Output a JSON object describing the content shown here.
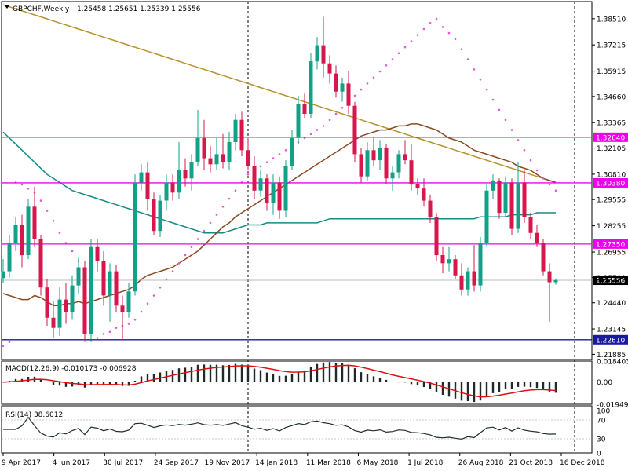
{
  "header": {
    "symbol": "GBPCHF,Weekly",
    "ohlc": "1.25458 1.25651 1.25339 1.25556"
  },
  "macd": {
    "label": "MACD(12,26,9) -0.010173 -0.006928",
    "ticks": [
      "0.018403",
      "0.00",
      "-0.019495"
    ]
  },
  "rsi": {
    "label": "RSI(14) 38.6012",
    "ticks": [
      "100",
      "70",
      "30",
      "0"
    ]
  },
  "price_axis": {
    "ticks": [
      "1.38510",
      "1.37215",
      "1.35915",
      "1.34660",
      "1.33365",
      "1.32105",
      "1.30810",
      "1.29555",
      "1.28255",
      "1.26955",
      "1.25700",
      "1.24440",
      "1.23145",
      "1.21885"
    ]
  },
  "time_axis": {
    "ticks": [
      "9 Apr 2017",
      "4 Jun 2017",
      "30 Jul 2017",
      "24 Sep 2017",
      "19 Nov 2017",
      "14 Jan 2018",
      "11 Mar 2018",
      "6 May 2018",
      "1 Jul 2018",
      "26 Aug 2018",
      "21 Oct 2018",
      "16 Dec 2018"
    ]
  },
  "colors": {
    "bull": "#12a089",
    "bear": "#d6174c",
    "ma_fast": "#8b4a23",
    "ma_mid": "#138c86",
    "ma_slow": "#b8922a",
    "sar": "#e05ad6",
    "hline": "#ee00ee",
    "support": "#1a1a9e",
    "macd_hist": "#1f2a2a",
    "macd_signal": "#e01010",
    "rsi_line": "#1f2f2f"
  },
  "chart_data": {
    "type": "candlestick",
    "title": "GBPCHF,Weekly",
    "ylim": [
      1.2163,
      1.3936
    ],
    "grid": false,
    "x": [
      "9 Apr 2017",
      "4 Jun 2017",
      "30 Jul 2017",
      "24 Sep 2017",
      "19 Nov 2017",
      "14 Jan 2018",
      "11 Mar 2018",
      "6 May 2018",
      "1 Jul 2018",
      "26 Aug 2018",
      "21 Oct 2018",
      "16 Dec 2018"
    ],
    "horizontal_lines": [
      {
        "value": "1.32640",
        "y": 1.3264,
        "color": "#ee00ee"
      },
      {
        "value": "1.30380",
        "y": 1.3038,
        "color": "#ee00ee"
      },
      {
        "value": "1.27350",
        "y": 1.2735,
        "color": "#ee00ee"
      },
      {
        "value": "1.22610",
        "y": 1.2261,
        "color": "#1a1a9e"
      }
    ],
    "current_price": "1.25556",
    "current_price_y": 1.25556,
    "candles": [
      {
        "o": 1.2566,
        "h": 1.266,
        "l": 1.254,
        "c": 1.26
      },
      {
        "o": 1.26,
        "h": 1.278,
        "l": 1.257,
        "c": 1.274
      },
      {
        "o": 1.274,
        "h": 1.287,
        "l": 1.27,
        "c": 1.283
      },
      {
        "o": 1.283,
        "h": 1.288,
        "l": 1.262,
        "c": 1.268
      },
      {
        "o": 1.268,
        "h": 1.296,
        "l": 1.266,
        "c": 1.292
      },
      {
        "o": 1.292,
        "h": 1.302,
        "l": 1.272,
        "c": 1.276
      },
      {
        "o": 1.276,
        "h": 1.278,
        "l": 1.248,
        "c": 1.252
      },
      {
        "o": 1.252,
        "h": 1.256,
        "l": 1.233,
        "c": 1.237
      },
      {
        "o": 1.237,
        "h": 1.245,
        "l": 1.227,
        "c": 1.232
      },
      {
        "o": 1.232,
        "h": 1.252,
        "l": 1.228,
        "c": 1.246
      },
      {
        "o": 1.246,
        "h": 1.254,
        "l": 1.234,
        "c": 1.24
      },
      {
        "o": 1.24,
        "h": 1.258,
        "l": 1.236,
        "c": 1.253
      },
      {
        "o": 1.253,
        "h": 1.267,
        "l": 1.249,
        "c": 1.262
      },
      {
        "o": 1.262,
        "h": 1.265,
        "l": 1.225,
        "c": 1.229
      },
      {
        "o": 1.229,
        "h": 1.276,
        "l": 1.225,
        "c": 1.272
      },
      {
        "o": 1.272,
        "h": 1.276,
        "l": 1.26,
        "c": 1.265
      },
      {
        "o": 1.265,
        "h": 1.27,
        "l": 1.243,
        "c": 1.248
      },
      {
        "o": 1.248,
        "h": 1.264,
        "l": 1.235,
        "c": 1.26
      },
      {
        "o": 1.26,
        "h": 1.263,
        "l": 1.24,
        "c": 1.243
      },
      {
        "o": 1.243,
        "h": 1.248,
        "l": 1.226,
        "c": 1.24
      },
      {
        "o": 1.24,
        "h": 1.254,
        "l": 1.237,
        "c": 1.25
      },
      {
        "o": 1.25,
        "h": 1.308,
        "l": 1.248,
        "c": 1.304
      },
      {
        "o": 1.304,
        "h": 1.313,
        "l": 1.3,
        "c": 1.309
      },
      {
        "o": 1.309,
        "h": 1.314,
        "l": 1.29,
        "c": 1.296
      },
      {
        "o": 1.296,
        "h": 1.299,
        "l": 1.278,
        "c": 1.28
      },
      {
        "o": 1.28,
        "h": 1.298,
        "l": 1.277,
        "c": 1.295
      },
      {
        "o": 1.295,
        "h": 1.308,
        "l": 1.29,
        "c": 1.304
      },
      {
        "o": 1.304,
        "h": 1.308,
        "l": 1.295,
        "c": 1.299
      },
      {
        "o": 1.299,
        "h": 1.324,
        "l": 1.296,
        "c": 1.31
      },
      {
        "o": 1.31,
        "h": 1.316,
        "l": 1.302,
        "c": 1.306
      },
      {
        "o": 1.306,
        "h": 1.318,
        "l": 1.3,
        "c": 1.314
      },
      {
        "o": 1.314,
        "h": 1.34,
        "l": 1.312,
        "c": 1.326
      },
      {
        "o": 1.326,
        "h": 1.335,
        "l": 1.31,
        "c": 1.316
      },
      {
        "o": 1.316,
        "h": 1.322,
        "l": 1.309,
        "c": 1.313
      },
      {
        "o": 1.313,
        "h": 1.326,
        "l": 1.31,
        "c": 1.318
      },
      {
        "o": 1.318,
        "h": 1.328,
        "l": 1.311,
        "c": 1.314
      },
      {
        "o": 1.314,
        "h": 1.329,
        "l": 1.31,
        "c": 1.324
      },
      {
        "o": 1.324,
        "h": 1.338,
        "l": 1.32,
        "c": 1.335
      },
      {
        "o": 1.335,
        "h": 1.339,
        "l": 1.317,
        "c": 1.32
      },
      {
        "o": 1.32,
        "h": 1.326,
        "l": 1.31,
        "c": 1.312
      },
      {
        "o": 1.312,
        "h": 1.317,
        "l": 1.296,
        "c": 1.3
      },
      {
        "o": 1.3,
        "h": 1.31,
        "l": 1.297,
        "c": 1.306
      },
      {
        "o": 1.306,
        "h": 1.308,
        "l": 1.29,
        "c": 1.294
      },
      {
        "o": 1.294,
        "h": 1.308,
        "l": 1.288,
        "c": 1.304
      },
      {
        "o": 1.304,
        "h": 1.307,
        "l": 1.286,
        "c": 1.29
      },
      {
        "o": 1.29,
        "h": 1.315,
        "l": 1.287,
        "c": 1.312
      },
      {
        "o": 1.312,
        "h": 1.33,
        "l": 1.31,
        "c": 1.326
      },
      {
        "o": 1.326,
        "h": 1.347,
        "l": 1.323,
        "c": 1.343
      },
      {
        "o": 1.343,
        "h": 1.348,
        "l": 1.336,
        "c": 1.338
      },
      {
        "o": 1.338,
        "h": 1.368,
        "l": 1.336,
        "c": 1.364
      },
      {
        "o": 1.364,
        "h": 1.376,
        "l": 1.36,
        "c": 1.372
      },
      {
        "o": 1.372,
        "h": 1.386,
        "l": 1.356,
        "c": 1.363
      },
      {
        "o": 1.363,
        "h": 1.367,
        "l": 1.353,
        "c": 1.358
      },
      {
        "o": 1.358,
        "h": 1.362,
        "l": 1.346,
        "c": 1.349
      },
      {
        "o": 1.349,
        "h": 1.356,
        "l": 1.344,
        "c": 1.353
      },
      {
        "o": 1.353,
        "h": 1.359,
        "l": 1.338,
        "c": 1.342
      },
      {
        "o": 1.342,
        "h": 1.344,
        "l": 1.314,
        "c": 1.318
      },
      {
        "o": 1.318,
        "h": 1.321,
        "l": 1.304,
        "c": 1.307
      },
      {
        "o": 1.307,
        "h": 1.324,
        "l": 1.305,
        "c": 1.32
      },
      {
        "o": 1.32,
        "h": 1.326,
        "l": 1.312,
        "c": 1.315
      },
      {
        "o": 1.315,
        "h": 1.325,
        "l": 1.31,
        "c": 1.321
      },
      {
        "o": 1.321,
        "h": 1.323,
        "l": 1.303,
        "c": 1.306
      },
      {
        "o": 1.306,
        "h": 1.312,
        "l": 1.3,
        "c": 1.309
      },
      {
        "o": 1.309,
        "h": 1.32,
        "l": 1.306,
        "c": 1.318
      },
      {
        "o": 1.318,
        "h": 1.325,
        "l": 1.313,
        "c": 1.315
      },
      {
        "o": 1.315,
        "h": 1.323,
        "l": 1.3,
        "c": 1.303
      },
      {
        "o": 1.303,
        "h": 1.306,
        "l": 1.298,
        "c": 1.301
      },
      {
        "o": 1.301,
        "h": 1.306,
        "l": 1.292,
        "c": 1.295
      },
      {
        "o": 1.295,
        "h": 1.298,
        "l": 1.284,
        "c": 1.287
      },
      {
        "o": 1.287,
        "h": 1.289,
        "l": 1.265,
        "c": 1.268
      },
      {
        "o": 1.268,
        "h": 1.272,
        "l": 1.259,
        "c": 1.264
      },
      {
        "o": 1.264,
        "h": 1.272,
        "l": 1.26,
        "c": 1.266
      },
      {
        "o": 1.266,
        "h": 1.268,
        "l": 1.256,
        "c": 1.258
      },
      {
        "o": 1.258,
        "h": 1.264,
        "l": 1.248,
        "c": 1.251
      },
      {
        "o": 1.251,
        "h": 1.262,
        "l": 1.248,
        "c": 1.26
      },
      {
        "o": 1.26,
        "h": 1.273,
        "l": 1.25,
        "c": 1.253
      },
      {
        "o": 1.253,
        "h": 1.277,
        "l": 1.25,
        "c": 1.274
      },
      {
        "o": 1.274,
        "h": 1.303,
        "l": 1.272,
        "c": 1.3
      },
      {
        "o": 1.3,
        "h": 1.308,
        "l": 1.296,
        "c": 1.305
      },
      {
        "o": 1.305,
        "h": 1.306,
        "l": 1.286,
        "c": 1.289
      },
      {
        "o": 1.289,
        "h": 1.307,
        "l": 1.287,
        "c": 1.304
      },
      {
        "o": 1.304,
        "h": 1.306,
        "l": 1.278,
        "c": 1.281
      },
      {
        "o": 1.281,
        "h": 1.314,
        "l": 1.279,
        "c": 1.304
      },
      {
        "o": 1.304,
        "h": 1.31,
        "l": 1.284,
        "c": 1.287
      },
      {
        "o": 1.287,
        "h": 1.289,
        "l": 1.276,
        "c": 1.279
      },
      {
        "o": 1.279,
        "h": 1.283,
        "l": 1.272,
        "c": 1.274
      },
      {
        "o": 1.274,
        "h": 1.276,
        "l": 1.258,
        "c": 1.26
      },
      {
        "o": 1.26,
        "h": 1.264,
        "l": 1.235,
        "c": 1.2546
      },
      {
        "o": 1.25458,
        "h": 1.25651,
        "l": 1.25339,
        "c": 1.25556
      }
    ],
    "sma_fast": [
      1.249,
      1.248,
      1.247,
      1.246,
      1.246,
      1.248,
      1.247,
      1.245,
      1.243,
      1.243,
      1.244,
      1.244,
      1.245,
      1.244,
      1.245,
      1.246,
      1.247,
      1.248,
      1.249,
      1.25,
      1.251,
      1.253,
      1.256,
      1.258,
      1.259,
      1.26,
      1.261,
      1.262,
      1.264,
      1.266,
      1.268,
      1.27,
      1.273,
      1.276,
      1.279,
      1.282,
      1.284,
      1.287,
      1.289,
      1.291,
      1.293,
      1.295,
      1.297,
      1.299,
      1.301,
      1.303,
      1.305,
      1.307,
      1.309,
      1.311,
      1.313,
      1.315,
      1.317,
      1.319,
      1.321,
      1.323,
      1.325,
      1.327,
      1.328,
      1.329,
      1.33,
      1.33,
      1.331,
      1.332,
      1.332,
      1.333,
      1.333,
      1.332,
      1.331,
      1.33,
      1.328,
      1.326,
      1.325,
      1.324,
      1.322,
      1.32,
      1.319,
      1.318,
      1.317,
      1.316,
      1.315,
      1.314,
      1.312,
      1.311,
      1.31,
      1.308,
      1.306,
      1.305,
      1.304
    ],
    "sma_mid": [
      1.329,
      1.326,
      1.323,
      1.32,
      1.317,
      1.314,
      1.311,
      1.308,
      1.306,
      1.304,
      1.302,
      1.3,
      1.299,
      1.298,
      1.297,
      1.296,
      1.295,
      1.294,
      1.293,
      1.292,
      1.291,
      1.29,
      1.289,
      1.288,
      1.287,
      1.286,
      1.285,
      1.284,
      1.283,
      1.282,
      1.281,
      1.28,
      1.279,
      1.279,
      1.279,
      1.279,
      1.28,
      1.281,
      1.282,
      1.283,
      1.283,
      1.283,
      1.284,
      1.284,
      1.284,
      1.284,
      1.284,
      1.284,
      1.284,
      1.284,
      1.284,
      1.285,
      1.286,
      1.286,
      1.286,
      1.286,
      1.286,
      1.286,
      1.286,
      1.286,
      1.286,
      1.286,
      1.286,
      1.286,
      1.286,
      1.286,
      1.286,
      1.286,
      1.286,
      1.286,
      1.286,
      1.286,
      1.286,
      1.286,
      1.286,
      1.286,
      1.287,
      1.287,
      1.287,
      1.287,
      1.287,
      1.288,
      1.288,
      1.288,
      1.288,
      1.289,
      1.289,
      1.289,
      1.289
    ],
    "sma_slow": [
      1.392,
      1.391,
      1.39,
      1.389,
      1.388,
      1.387,
      1.386,
      1.385,
      1.384,
      1.383,
      1.382,
      1.381,
      1.38,
      1.379,
      1.378,
      1.377,
      1.376,
      1.375,
      1.374,
      1.373,
      1.372,
      1.371,
      1.37,
      1.369,
      1.368,
      1.367,
      1.366,
      1.365,
      1.364,
      1.363,
      1.362,
      1.361,
      1.36,
      1.359,
      1.358,
      1.357,
      1.356,
      1.355,
      1.354,
      1.353,
      1.352,
      1.351,
      1.35,
      1.349,
      1.348,
      1.347,
      1.346,
      1.345,
      1.344,
      1.343,
      1.342,
      1.341,
      1.34,
      1.339,
      1.338,
      1.337,
      1.336,
      1.335,
      1.334,
      1.333,
      1.332,
      1.331,
      1.33,
      1.329,
      1.328,
      1.327,
      1.326,
      1.325,
      1.324,
      1.323,
      1.322,
      1.321,
      1.32,
      1.319,
      1.318,
      1.317,
      1.316,
      1.315,
      1.314,
      1.313,
      1.312,
      1.311,
      1.31,
      1.309,
      1.308,
      1.307,
      1.306,
      1.305,
      1.304
    ],
    "parabolic_sar": [
      1.223,
      1.225,
      1.304,
      1.303,
      1.301,
      1.299,
      1.295,
      1.29,
      1.285,
      1.279,
      1.274,
      1.27,
      1.265,
      1.26,
      1.226,
      1.227,
      1.229,
      1.23,
      1.232,
      1.233,
      1.234,
      1.236,
      1.24,
      1.244,
      1.248,
      1.252,
      1.256,
      1.26,
      1.264,
      1.268,
      1.272,
      1.276,
      1.28,
      1.284,
      1.288,
      1.292,
      1.296,
      1.3,
      1.304,
      1.308,
      1.31,
      1.312,
      1.314,
      1.316,
      1.318,
      1.32,
      1.322,
      1.324,
      1.326,
      1.328,
      1.33,
      1.332,
      1.335,
      1.338,
      1.341,
      1.344,
      1.347,
      1.35,
      1.353,
      1.356,
      1.359,
      1.362,
      1.365,
      1.368,
      1.371,
      1.374,
      1.377,
      1.38,
      1.383,
      1.385,
      1.381,
      1.378,
      1.375,
      1.37,
      1.365,
      1.36,
      1.355,
      1.35,
      1.345,
      1.34,
      1.335,
      1.33,
      1.325,
      1.32,
      1.315,
      1.31,
      1.306,
      1.303,
      1.3
    ]
  }
}
